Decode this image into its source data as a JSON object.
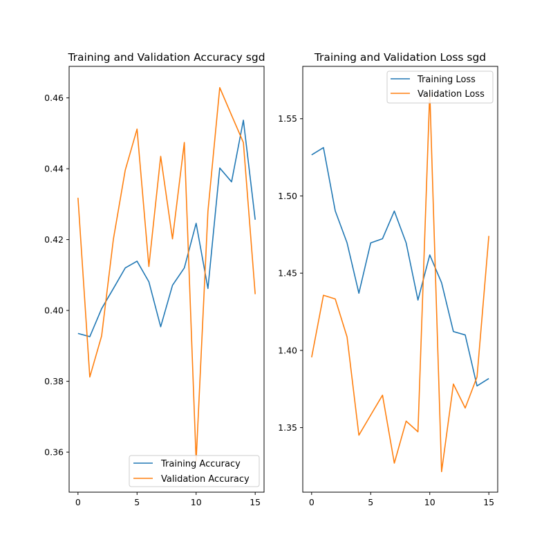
{
  "chart_data": [
    {
      "type": "line",
      "title": "Training and Validation Accuracy sgd",
      "xlabel": "",
      "ylabel": "",
      "xlim": [
        -0.75,
        15.75
      ],
      "ylim": [
        0.3487,
        0.4689
      ],
      "xticks": [
        0,
        5,
        10,
        15
      ],
      "yticks": [
        0.36,
        0.38,
        0.4,
        0.42,
        0.44,
        0.46
      ],
      "ytick_labels": [
        "0.36",
        "0.38",
        "0.40",
        "0.42",
        "0.44",
        "0.46"
      ],
      "grid": false,
      "legend_position": "lower right",
      "x": [
        0,
        1,
        2,
        3,
        4,
        5,
        6,
        7,
        8,
        9,
        10,
        11,
        12,
        13,
        14,
        15
      ],
      "series": [
        {
          "name": "Training Accuracy",
          "color": "#1f77b4",
          "values": [
            0.3935,
            0.3926,
            0.4005,
            0.4062,
            0.412,
            0.4139,
            0.4081,
            0.3954,
            0.4071,
            0.412,
            0.4246,
            0.4062,
            0.4402,
            0.4363,
            0.4537,
            0.4256
          ]
        },
        {
          "name": "Validation Accuracy",
          "color": "#ff7f0e",
          "values": [
            0.4318,
            0.3812,
            0.3928,
            0.4202,
            0.4396,
            0.4512,
            0.4124,
            0.4435,
            0.4202,
            0.4474,
            0.3575,
            0.428,
            0.4629,
            0.4551,
            0.4474,
            0.4046
          ]
        }
      ]
    },
    {
      "type": "line",
      "title": "Training and Validation Loss sgd",
      "xlabel": "",
      "ylabel": "",
      "xlim": [
        -0.75,
        15.75
      ],
      "ylim": [
        1.3082,
        1.5839
      ],
      "xticks": [
        0,
        5,
        10,
        15
      ],
      "yticks": [
        1.35,
        1.4,
        1.45,
        1.5,
        1.55
      ],
      "ytick_labels": [
        "1.35",
        "1.40",
        "1.45",
        "1.50",
        "1.55"
      ],
      "grid": false,
      "legend_position": "upper right",
      "x": [
        0,
        1,
        2,
        3,
        4,
        5,
        6,
        7,
        8,
        9,
        10,
        11,
        12,
        13,
        14,
        15
      ],
      "series": [
        {
          "name": "Training Loss",
          "color": "#1f77b4",
          "values": [
            1.5266,
            1.5313,
            1.4903,
            1.4696,
            1.437,
            1.4696,
            1.4723,
            1.4902,
            1.4696,
            1.4326,
            1.4618,
            1.4438,
            1.4122,
            1.41,
            1.377,
            1.3818
          ]
        },
        {
          "name": "Validation Loss",
          "color": "#ff7f0e",
          "values": [
            1.3955,
            1.4357,
            1.4333,
            1.4087,
            1.3451,
            1.3581,
            1.371,
            1.327,
            1.3542,
            1.3473,
            1.5675,
            1.3215,
            1.3782,
            1.3627,
            1.3828,
            1.4741
          ]
        }
      ]
    }
  ]
}
